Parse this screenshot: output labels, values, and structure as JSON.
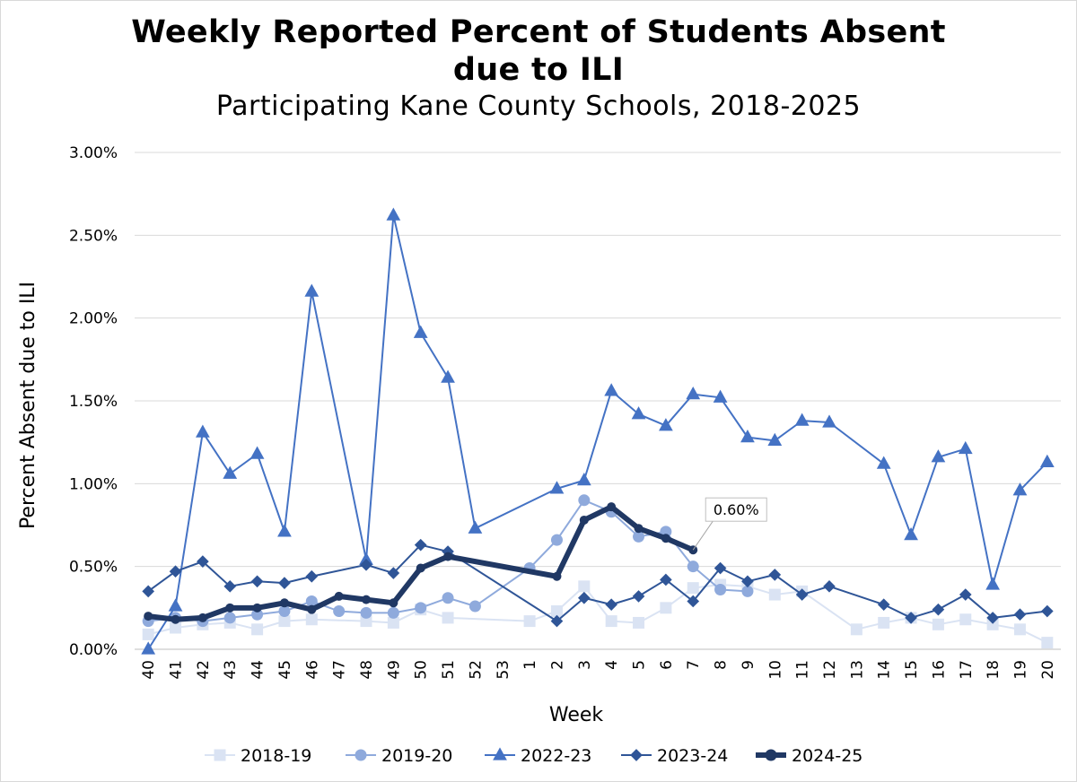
{
  "chart_data": {
    "type": "line",
    "title_line1": "Weekly Reported Percent of Students Absent",
    "title_line2": "due to ILI",
    "subtitle": "Participating Kane County Schools, 2018-2025",
    "xlabel": "Week",
    "ylabel": "Percent Absent due to ILI",
    "ylim": [
      0,
      3.0
    ],
    "yticks": [
      "0.00%",
      "0.50%",
      "1.00%",
      "1.50%",
      "2.00%",
      "2.50%",
      "3.00%"
    ],
    "grid": true,
    "legend_position": "bottom",
    "categories": [
      "40",
      "41",
      "42",
      "43",
      "44",
      "45",
      "46",
      "47",
      "48",
      "49",
      "50",
      "51",
      "52",
      "53",
      "1",
      "2",
      "3",
      "4",
      "5",
      "6",
      "7",
      "8",
      "9",
      "10",
      "11",
      "12",
      "13",
      "14",
      "15",
      "16",
      "17",
      "18",
      "19",
      "20"
    ],
    "series": [
      {
        "name": "2018-19",
        "color": "#dae3f3",
        "marker": "square",
        "values": [
          0.09,
          0.13,
          0.15,
          0.16,
          0.12,
          0.17,
          0.18,
          null,
          0.17,
          0.16,
          0.24,
          0.19,
          null,
          null,
          0.17,
          0.23,
          0.38,
          0.17,
          0.16,
          0.25,
          0.37,
          0.39,
          0.38,
          0.33,
          0.35,
          null,
          0.12,
          0.16,
          0.19,
          0.15,
          0.18,
          0.15,
          0.12,
          0.04
        ]
      },
      {
        "name": "2019-20",
        "color": "#8faadc",
        "marker": "circle",
        "values": [
          0.17,
          0.19,
          0.17,
          0.19,
          0.21,
          0.23,
          0.29,
          0.23,
          0.22,
          0.22,
          0.25,
          0.31,
          0.26,
          null,
          0.49,
          0.66,
          0.9,
          0.83,
          0.68,
          0.71,
          0.5,
          0.36,
          0.35,
          null,
          null,
          null,
          null,
          null,
          null,
          null,
          null,
          null,
          null,
          null
        ]
      },
      {
        "name": "2022-23",
        "color": "#4472c4",
        "marker": "triangle",
        "values": [
          0.0,
          0.26,
          1.31,
          1.06,
          1.18,
          0.71,
          2.16,
          null,
          0.54,
          2.62,
          1.91,
          1.64,
          0.73,
          null,
          null,
          0.97,
          1.02,
          1.56,
          1.42,
          1.35,
          1.54,
          1.52,
          1.28,
          1.26,
          1.38,
          1.37,
          null,
          1.12,
          0.69,
          1.16,
          1.21,
          0.39,
          0.96,
          1.13
        ]
      },
      {
        "name": "2023-24",
        "color": "#2f5597",
        "marker": "diamond",
        "values": [
          0.35,
          0.47,
          0.53,
          0.38,
          0.41,
          0.4,
          0.44,
          null,
          0.51,
          0.46,
          0.63,
          0.59,
          null,
          null,
          null,
          0.17,
          0.31,
          0.27,
          0.32,
          0.42,
          0.29,
          0.49,
          0.41,
          0.45,
          0.33,
          0.38,
          null,
          0.27,
          0.19,
          0.24,
          0.33,
          0.19,
          0.21,
          0.23
        ]
      },
      {
        "name": "2024-25",
        "color": "#203864",
        "marker": "circle",
        "bold": true,
        "values": [
          0.2,
          0.18,
          0.19,
          0.25,
          0.25,
          0.28,
          0.24,
          0.32,
          0.3,
          0.28,
          0.49,
          0.56,
          null,
          null,
          null,
          0.44,
          0.78,
          0.86,
          0.73,
          0.67,
          0.6,
          null,
          null,
          null,
          null,
          null,
          null,
          null,
          null,
          null,
          null,
          null,
          null,
          null
        ]
      }
    ],
    "annotations": [
      {
        "series": "2024-25",
        "category": "7",
        "text": "0.60%"
      }
    ]
  }
}
